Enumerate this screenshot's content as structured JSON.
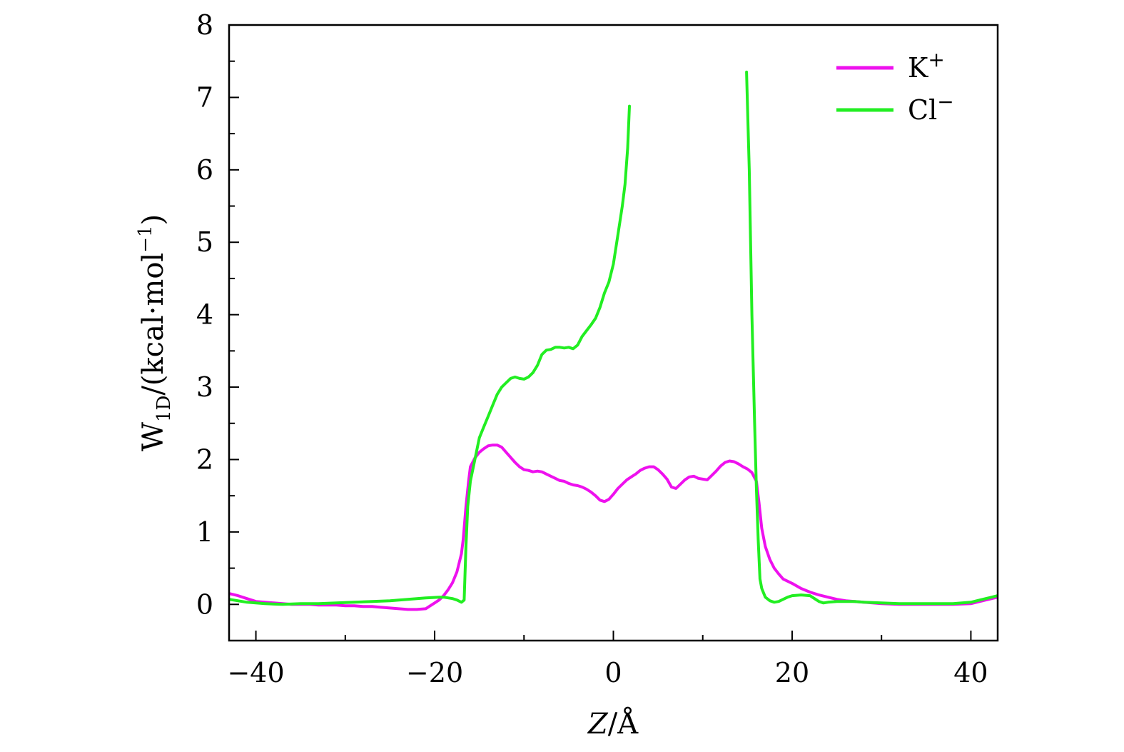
{
  "chart_data": {
    "type": "line",
    "xlabel": "Z/Å",
    "xlabel_parts": {
      "var": "Z",
      "sep": "/",
      "unit": "Å"
    },
    "ylabel": "W1D/(kcal·mol−1)",
    "ylabel_parts": {
      "main": "W",
      "sub": "1D",
      "mid": "/(kcal·mol",
      "sup": "−1",
      "end": ")"
    },
    "xlim": [
      -43,
      43
    ],
    "ylim": [
      -0.5,
      8
    ],
    "xticks": [
      -40,
      -20,
      0,
      20,
      40
    ],
    "xtick_labels": [
      "−40",
      "−20",
      "0",
      "20",
      "40"
    ],
    "yticks": [
      0,
      1,
      2,
      3,
      4,
      5,
      6,
      7,
      8
    ],
    "ytick_labels": [
      "0",
      "1",
      "2",
      "3",
      "4",
      "5",
      "6",
      "7",
      "8"
    ],
    "grid": false,
    "legend_position": "top-right",
    "series": [
      {
        "name": "K+",
        "name_base": "K",
        "name_sup": "+",
        "color": "#ee11ee",
        "x": [
          -43,
          -42,
          -41,
          -40,
          -39,
          -38,
          -37,
          -36,
          -35,
          -34,
          -33,
          -32,
          -31,
          -30,
          -29,
          -28,
          -27,
          -26,
          -25,
          -24,
          -23,
          -22,
          -21,
          -20.5,
          -20,
          -19.5,
          -19,
          -18.5,
          -18,
          -17.5,
          -17,
          -16.8,
          -16.5,
          -16.2,
          -16,
          -15.5,
          -15,
          -14.5,
          -14,
          -13.5,
          -13,
          -12.5,
          -12,
          -11.5,
          -11,
          -10.5,
          -10,
          -9.5,
          -9,
          -8.5,
          -8,
          -7.5,
          -7,
          -6.5,
          -6,
          -5.5,
          -5,
          -4.5,
          -4,
          -3.5,
          -3,
          -2.5,
          -2,
          -1.5,
          -1,
          -0.5,
          0,
          0.5,
          1,
          1.5,
          2,
          2.5,
          3,
          3.5,
          4,
          4.5,
          5,
          5.5,
          6,
          6.5,
          7,
          7.5,
          8,
          8.5,
          9,
          9.5,
          10,
          10.5,
          11,
          11.5,
          12,
          12.5,
          13,
          13.5,
          14,
          14.5,
          15,
          15.5,
          16,
          16.3,
          16.6,
          17,
          17.5,
          18,
          18.5,
          19,
          20,
          21,
          22,
          23,
          24,
          25,
          26,
          27,
          28,
          30,
          32,
          34,
          36,
          38,
          40,
          41,
          42,
          43
        ],
        "y": [
          0.15,
          0.12,
          0.08,
          0.04,
          0.03,
          0.02,
          0.01,
          0.0,
          0.0,
          0.0,
          -0.01,
          -0.01,
          -0.01,
          -0.02,
          -0.02,
          -0.03,
          -0.03,
          -0.04,
          -0.05,
          -0.06,
          -0.07,
          -0.07,
          -0.06,
          -0.02,
          0.02,
          0.06,
          0.12,
          0.2,
          0.3,
          0.45,
          0.7,
          0.9,
          1.35,
          1.7,
          1.9,
          2.02,
          2.1,
          2.15,
          2.19,
          2.2,
          2.2,
          2.17,
          2.1,
          2.03,
          1.96,
          1.9,
          1.86,
          1.85,
          1.83,
          1.84,
          1.83,
          1.8,
          1.77,
          1.74,
          1.71,
          1.7,
          1.67,
          1.65,
          1.64,
          1.62,
          1.59,
          1.55,
          1.5,
          1.44,
          1.42,
          1.45,
          1.52,
          1.6,
          1.66,
          1.72,
          1.76,
          1.8,
          1.85,
          1.88,
          1.9,
          1.9,
          1.86,
          1.8,
          1.73,
          1.62,
          1.6,
          1.66,
          1.72,
          1.76,
          1.77,
          1.74,
          1.73,
          1.72,
          1.78,
          1.84,
          1.91,
          1.96,
          1.98,
          1.97,
          1.94,
          1.9,
          1.87,
          1.82,
          1.7,
          1.4,
          1.05,
          0.8,
          0.62,
          0.5,
          0.42,
          0.35,
          0.29,
          0.22,
          0.17,
          0.13,
          0.1,
          0.07,
          0.05,
          0.04,
          0.03,
          0.01,
          0.0,
          0.0,
          0.0,
          0.0,
          0.01,
          0.04,
          0.07,
          0.1
        ]
      },
      {
        "name": "Cl−",
        "name_base": "Cl",
        "name_sup": "−",
        "color": "#22ee22",
        "segments": [
          {
            "x": [
              -43,
              -41,
              -39,
              -37,
              -35,
              -33,
              -31,
              -29,
              -27,
              -25,
              -23,
              -21,
              -19.5,
              -19,
              -18,
              -17.5,
              -17,
              -16.7,
              -16.5,
              -16.3,
              -16,
              -15.5,
              -15,
              -14.5,
              -14,
              -13.5,
              -13,
              -12.5,
              -12,
              -11.5,
              -11,
              -10.5,
              -10,
              -9.5,
              -9,
              -8.5,
              -8,
              -7.5,
              -7,
              -6.5,
              -6,
              -5.5,
              -5,
              -4.5,
              -4,
              -3.5,
              -3,
              -2.5,
              -2,
              -1.5,
              -1,
              -0.5,
              0,
              0.5,
              1,
              1.3,
              1.6,
              1.8
            ],
            "y": [
              0.07,
              0.03,
              0.01,
              0.0,
              0.01,
              0.01,
              0.02,
              0.03,
              0.04,
              0.05,
              0.07,
              0.09,
              0.1,
              0.1,
              0.08,
              0.06,
              0.03,
              0.06,
              0.8,
              1.35,
              1.7,
              2.0,
              2.3,
              2.45,
              2.6,
              2.75,
              2.9,
              3.0,
              3.06,
              3.12,
              3.14,
              3.12,
              3.11,
              3.14,
              3.2,
              3.3,
              3.45,
              3.51,
              3.52,
              3.55,
              3.55,
              3.54,
              3.55,
              3.53,
              3.58,
              3.7,
              3.78,
              3.86,
              3.95,
              4.1,
              4.3,
              4.45,
              4.7,
              5.1,
              5.5,
              5.8,
              6.3,
              6.88
            ]
          },
          {
            "x": [
              14.9,
              15.2,
              15.5,
              15.8,
              16.0,
              16.2,
              16.4,
              16.6,
              17,
              17.5,
              18,
              18.5,
              19,
              19.5,
              20,
              21,
              22,
              22.5,
              23,
              23.5,
              24,
              25,
              26,
              27,
              28,
              30,
              32,
              34,
              36,
              38,
              40,
              41,
              42,
              43
            ],
            "y": [
              7.35,
              6.0,
              4.0,
              2.5,
              1.6,
              0.9,
              0.35,
              0.22,
              0.1,
              0.05,
              0.03,
              0.04,
              0.07,
              0.1,
              0.12,
              0.13,
              0.12,
              0.08,
              0.04,
              0.02,
              0.03,
              0.04,
              0.04,
              0.04,
              0.03,
              0.02,
              0.01,
              0.01,
              0.01,
              0.01,
              0.03,
              0.06,
              0.09,
              0.12
            ]
          }
        ]
      }
    ]
  }
}
